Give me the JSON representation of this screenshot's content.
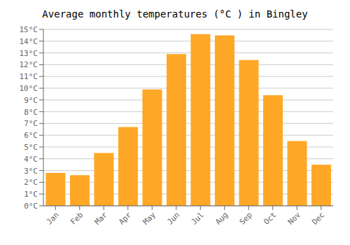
{
  "chart_data": {
    "type": "bar",
    "title": "Average monthly temperatures (°C ) in Bingley",
    "categories": [
      "Jan",
      "Feb",
      "Mar",
      "Apr",
      "May",
      "Jun",
      "Jul",
      "Aug",
      "Sep",
      "Oct",
      "Nov",
      "Dec"
    ],
    "values": [
      2.8,
      2.6,
      4.5,
      6.7,
      9.9,
      12.9,
      14.6,
      14.5,
      12.4,
      9.4,
      5.5,
      3.5
    ],
    "color": "#FFA726",
    "ylim": [
      0,
      15
    ],
    "yticks": [
      {
        "value": 0,
        "label": "0°C"
      },
      {
        "value": 1,
        "label": "1°C"
      },
      {
        "value": 2,
        "label": "2°C"
      },
      {
        "value": 3,
        "label": "3°C"
      },
      {
        "value": 4,
        "label": "4°C"
      },
      {
        "value": 5,
        "label": "5°C"
      },
      {
        "value": 6,
        "label": "6°C"
      },
      {
        "value": 7,
        "label": "7°C"
      },
      {
        "value": 8,
        "label": "8°C"
      },
      {
        "value": 9,
        "label": "9°C"
      },
      {
        "value": 10,
        "label": "10°C"
      },
      {
        "value": 11,
        "label": "11°C"
      },
      {
        "value": 12,
        "label": "12°C"
      },
      {
        "value": 13,
        "label": "13°C"
      },
      {
        "value": 14,
        "label": "14°C"
      },
      {
        "value": 15,
        "label": "15°C"
      }
    ],
    "grid": true
  }
}
